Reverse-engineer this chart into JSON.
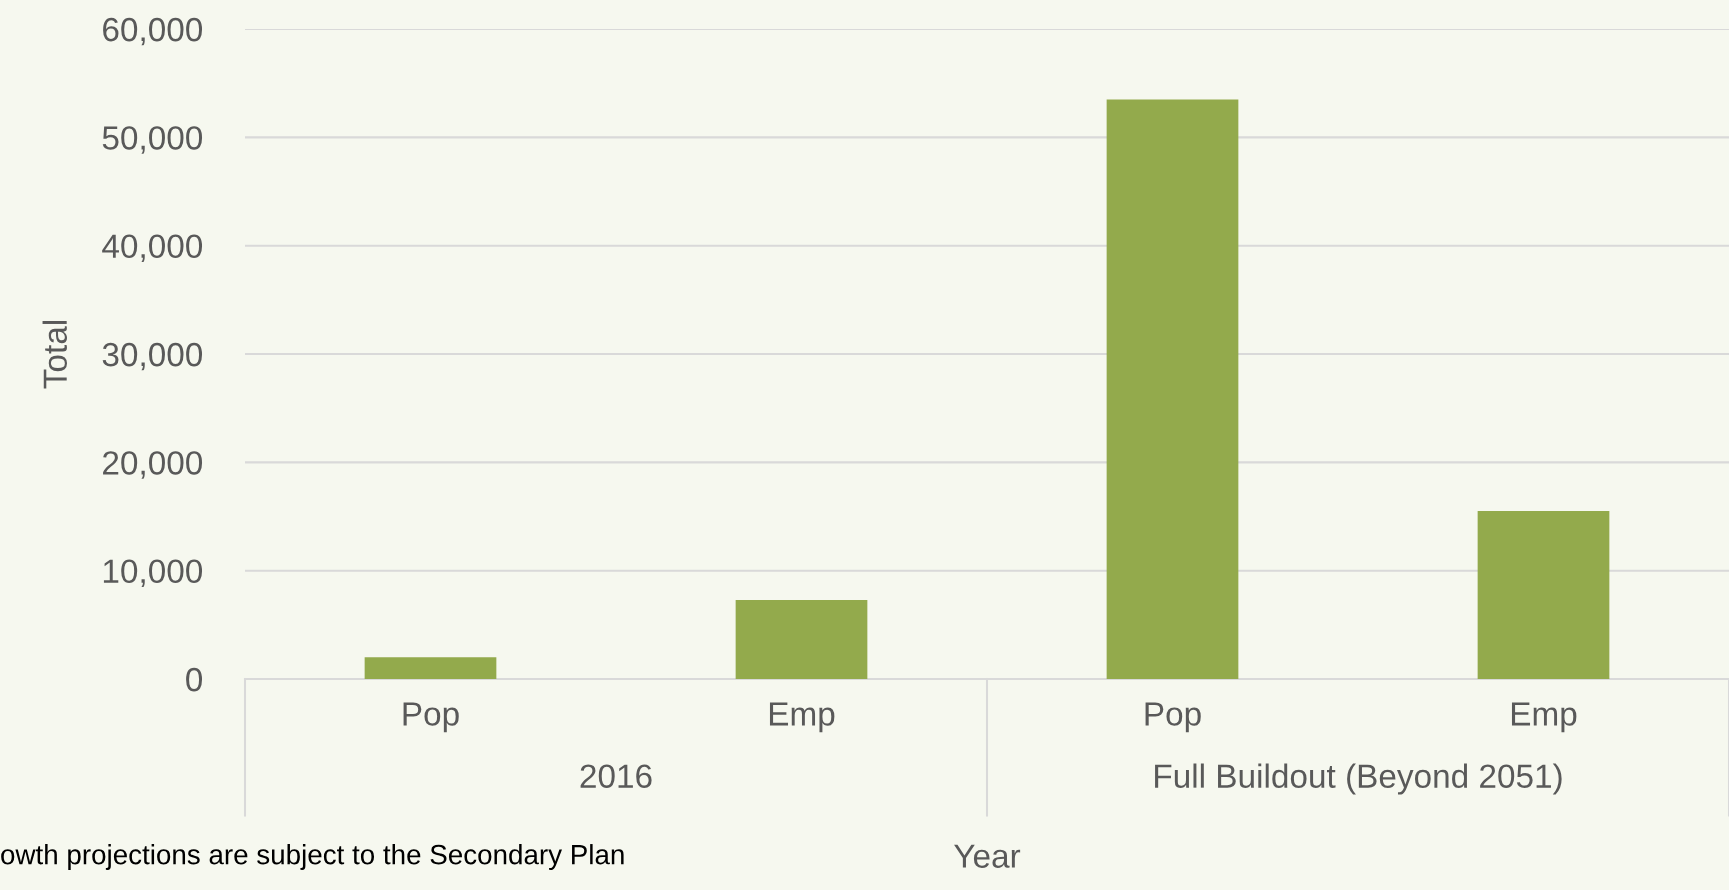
{
  "chart_data": {
    "type": "bar",
    "xlabel": "Year",
    "ylabel": "Total",
    "categories": [
      "Pop",
      "Emp",
      "Pop",
      "Emp"
    ],
    "values": [
      2000,
      7300,
      53500,
      15500
    ],
    "color": "#93aa4c",
    "ylim": [
      0,
      60000
    ],
    "yticks": [
      {
        "value": 0,
        "label": "0"
      },
      {
        "value": 10000,
        "label": "10,000"
      },
      {
        "value": 20000,
        "label": "20,000"
      },
      {
        "value": 30000,
        "label": "30,000"
      },
      {
        "value": 40000,
        "label": "40,000"
      },
      {
        "value": 50000,
        "label": "50,000"
      },
      {
        "value": 60000,
        "label": "60,000"
      }
    ],
    "grid": "y",
    "annotations": [
      "2016",
      "Full Buildout (Beyond 2051)",
      "owth projections are subject to the Secondary Plan"
    ]
  }
}
